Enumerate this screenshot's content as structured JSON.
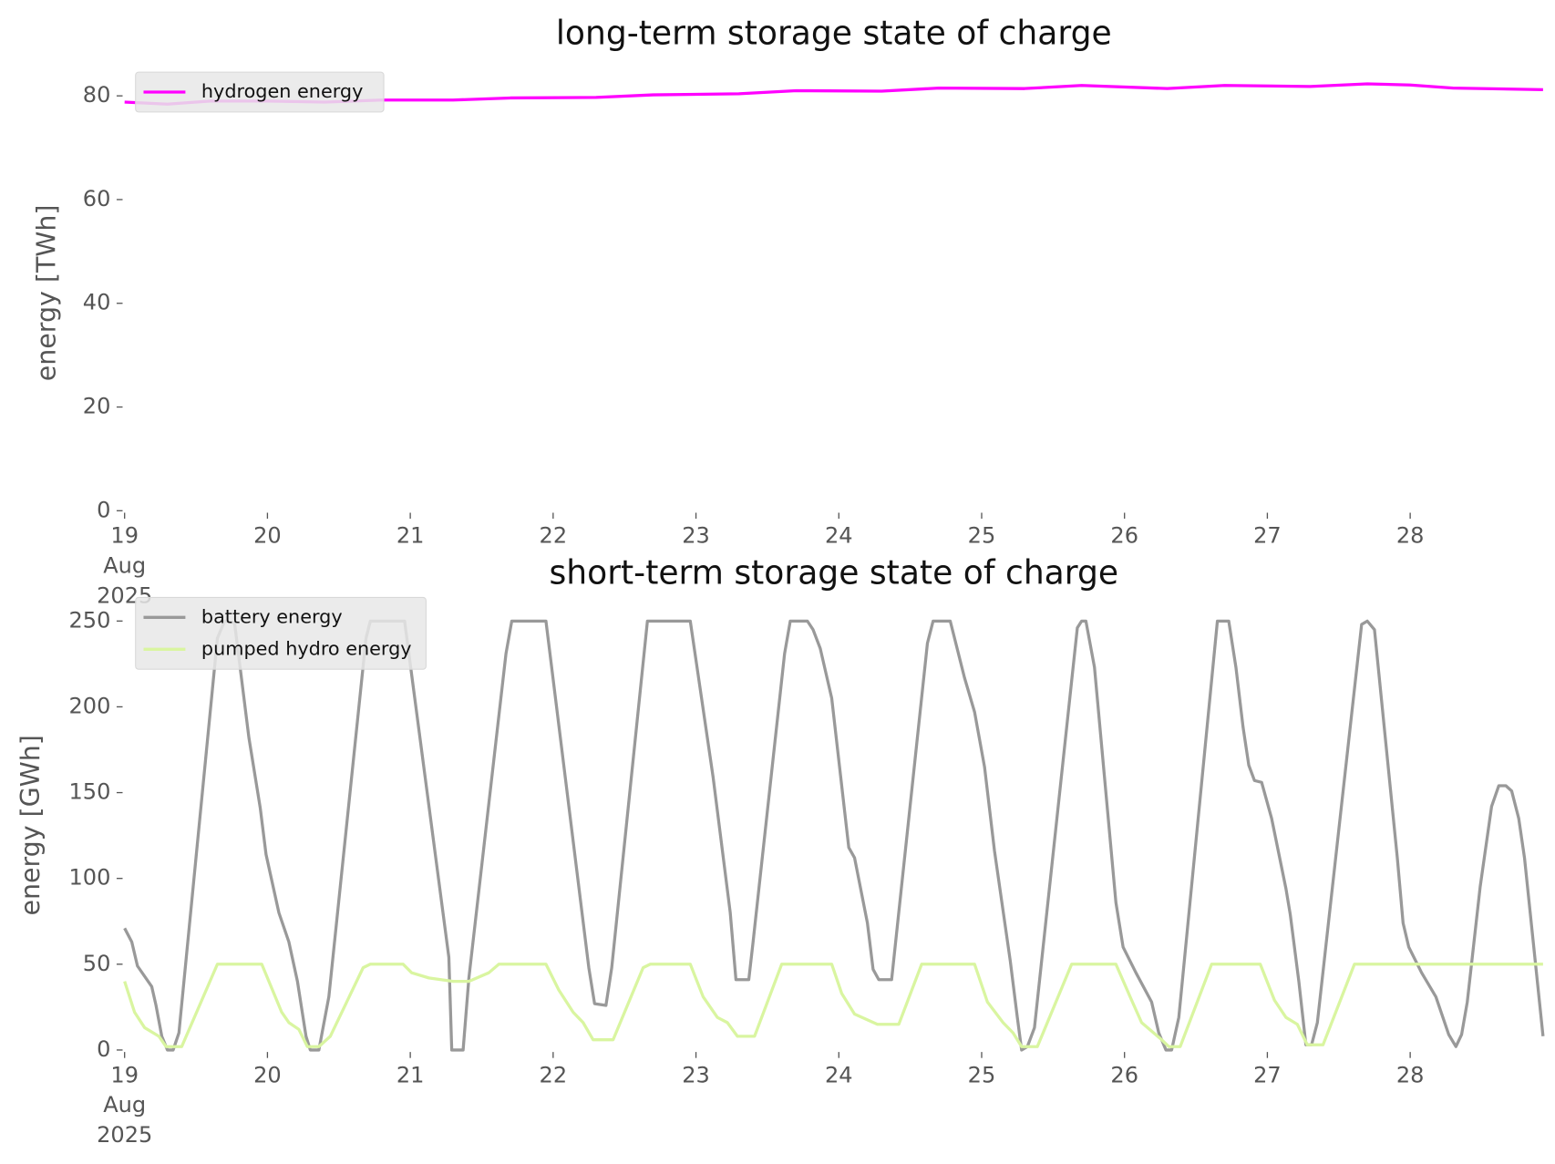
{
  "chart_data": [
    {
      "type": "line",
      "title": "long-term storage state of charge",
      "ylabel": "energy [TWh]",
      "legend": "upper left",
      "xlim": [
        19,
        28.93
      ],
      "ylim": [
        0,
        84
      ],
      "xticks": [
        {
          "value": 19,
          "label": "19\nAug\n2025"
        },
        20,
        21,
        22,
        23,
        24,
        25,
        26,
        27,
        28
      ],
      "yticks": [
        0,
        20,
        40,
        60,
        80
      ],
      "series": [
        {
          "name": "hydrogen energy",
          "color": "#ff00ff",
          "x": [
            19.0,
            19.3,
            19.6,
            20.0,
            20.4,
            20.8,
            21.3,
            21.7,
            22.3,
            22.7,
            23.3,
            23.7,
            24.3,
            24.7,
            25.3,
            25.7,
            26.3,
            26.7,
            27.3,
            27.7,
            28.0,
            28.3,
            28.93
          ],
          "values": [
            78.8,
            78.4,
            79.0,
            79.0,
            78.8,
            79.2,
            79.2,
            79.6,
            79.7,
            80.2,
            80.4,
            81.0,
            80.9,
            81.5,
            81.4,
            82.0,
            81.4,
            82.0,
            81.8,
            82.3,
            82.1,
            81.5,
            81.2
          ]
        }
      ]
    },
    {
      "type": "line",
      "title": "short-term storage state of charge",
      "ylabel": "energy [GWh]",
      "legend": "upper left",
      "xlim": [
        19,
        28.93
      ],
      "ylim": [
        0,
        262
      ],
      "xticks": [
        {
          "value": 19,
          "label": "19\nAug\n2025"
        },
        20,
        21,
        22,
        23,
        24,
        25,
        26,
        27,
        28
      ],
      "yticks": [
        0,
        50,
        100,
        150,
        200,
        250
      ],
      "series": [
        {
          "name": "battery energy",
          "color": "#999999",
          "x": [
            19.0,
            19.05,
            19.09,
            19.19,
            19.22,
            19.26,
            19.3,
            19.34,
            19.38,
            19.65,
            19.7,
            19.77,
            19.87,
            19.95,
            19.99,
            20.08,
            20.15,
            20.21,
            20.27,
            20.3,
            20.36,
            20.43,
            20.69,
            20.72,
            20.96,
            21.27,
            21.29,
            21.37,
            21.41,
            21.67,
            21.71,
            21.95,
            22.25,
            22.29,
            22.37,
            22.41,
            22.66,
            22.96,
            23.12,
            23.24,
            23.28,
            23.37,
            23.4,
            23.62,
            23.66,
            23.78,
            23.82,
            23.87,
            23.95,
            24.07,
            24.11,
            24.2,
            24.24,
            24.28,
            24.37,
            24.62,
            24.66,
            24.78,
            24.88,
            24.95,
            25.02,
            25.09,
            25.2,
            25.25,
            25.28,
            25.32,
            25.37,
            25.67,
            25.7,
            25.73,
            25.79,
            25.94,
            25.99,
            26.08,
            26.19,
            26.24,
            26.29,
            26.33,
            26.38,
            26.65,
            26.73,
            26.78,
            26.83,
            26.87,
            26.91,
            26.96,
            27.03,
            27.13,
            27.16,
            27.22,
            27.27,
            27.31,
            27.35,
            27.66,
            27.7,
            27.75,
            27.91,
            27.95,
            27.99,
            28.08,
            28.18,
            28.27,
            28.32,
            28.36,
            28.4,
            28.49,
            28.57,
            28.62,
            28.67,
            28.71,
            28.76,
            28.8,
            28.93
          ],
          "values": [
            71,
            63,
            49,
            37,
            26,
            8,
            0,
            0,
            10,
            240,
            250,
            249,
            182,
            141,
            114,
            80,
            63,
            40,
            8,
            0,
            0,
            31,
            240,
            250,
            250,
            54,
            0,
            0,
            42,
            231,
            250,
            250,
            48,
            27,
            26,
            48,
            250,
            250,
            159,
            80,
            41,
            41,
            63,
            231,
            250,
            250,
            245,
            234,
            205,
            118,
            112,
            74,
            47,
            41,
            41,
            237,
            250,
            250,
            217,
            197,
            165,
            116,
            52,
            19,
            0,
            2,
            13,
            246,
            250,
            250,
            223,
            86,
            60,
            45,
            28,
            10,
            0,
            0,
            19,
            250,
            250,
            223,
            188,
            166,
            157,
            156,
            135,
            94,
            79,
            40,
            3,
            3,
            16,
            248,
            250,
            245,
            112,
            74,
            60,
            45,
            31,
            9,
            2,
            9,
            28,
            95,
            142,
            154,
            154,
            151,
            135,
            112,
            8
          ]
        },
        {
          "name": "pumped hydro energy",
          "color": "#d9f5a0",
          "x": [
            19.0,
            19.07,
            19.14,
            19.24,
            19.29,
            19.4,
            19.65,
            19.96,
            20.1,
            20.15,
            20.22,
            20.28,
            20.36,
            20.44,
            20.67,
            20.72,
            20.95,
            21.01,
            21.13,
            21.3,
            21.41,
            21.55,
            21.62,
            21.95,
            22.04,
            22.14,
            22.21,
            22.28,
            22.42,
            22.63,
            22.68,
            22.96,
            23.05,
            23.15,
            23.22,
            23.29,
            23.41,
            23.6,
            23.95,
            24.02,
            24.11,
            24.27,
            24.42,
            24.58,
            24.95,
            25.04,
            25.15,
            25.22,
            25.28,
            25.39,
            25.63,
            25.94,
            26.05,
            26.12,
            26.26,
            26.31,
            26.39,
            26.61,
            26.95,
            27.05,
            27.13,
            27.21,
            27.28,
            27.39,
            27.61,
            28.93
          ],
          "values": [
            40,
            22,
            13,
            8,
            2,
            2,
            50,
            50,
            22,
            16,
            12,
            2,
            2,
            8,
            48,
            50,
            50,
            45,
            42,
            40,
            40,
            45,
            50,
            50,
            35,
            22,
            16,
            6,
            6,
            48,
            50,
            50,
            31,
            19,
            16,
            8,
            8,
            50,
            50,
            33,
            21,
            15,
            15,
            50,
            50,
            28,
            16,
            10,
            2,
            2,
            50,
            50,
            29,
            16,
            6,
            2,
            2,
            50,
            50,
            29,
            19,
            15,
            3,
            3,
            50,
            50
          ]
        }
      ]
    }
  ]
}
